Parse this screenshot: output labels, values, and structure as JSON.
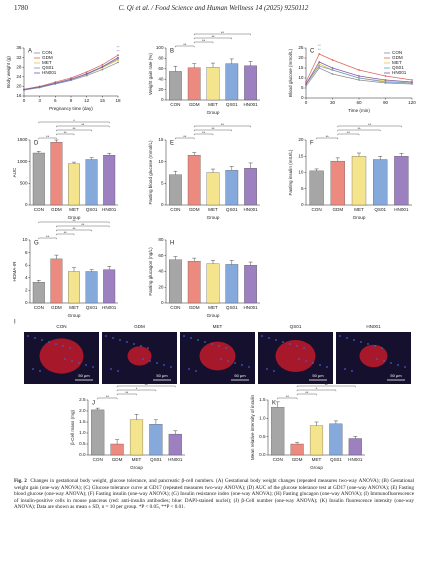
{
  "header": {
    "page": "1780",
    "journal": "C. Qi et al. / Food Science and Human Wellness 14 (2025) 9250112"
  },
  "chart_data": [
    {
      "type": "line",
      "panel": "A",
      "ylabel": "Body weight (g)",
      "xlabel": "Pregnancy time (day)",
      "x": [
        0,
        3,
        6,
        9,
        12,
        15,
        18
      ],
      "xlim": [
        0,
        18
      ],
      "xticks": [
        0,
        3,
        6,
        9,
        12,
        15,
        18
      ],
      "ylim": [
        16,
        36
      ],
      "yticks": [
        16,
        20,
        24,
        28,
        32,
        36
      ],
      "legend": "upper left",
      "annotations": [
        "**",
        "**"
      ],
      "series": [
        {
          "name": "CON",
          "color": "#8c8c8c",
          "values": [
            18.5,
            19.5,
            21,
            22.5,
            24.5,
            27,
            30
          ]
        },
        {
          "name": "GDM",
          "color": "#e0625a",
          "values": [
            18.8,
            20,
            21.8,
            23.5,
            26,
            29,
            33
          ]
        },
        {
          "name": "MET",
          "color": "#e3c840",
          "values": [
            18.6,
            19.8,
            21.3,
            23,
            25,
            27.8,
            31
          ]
        },
        {
          "name": "QS01",
          "color": "#6f97d0",
          "values": [
            18.5,
            19.7,
            21.2,
            22.8,
            25,
            28,
            31.5
          ]
        },
        {
          "name": "HN001",
          "color": "#7a5aa8",
          "values": [
            18.7,
            19.8,
            21.4,
            23,
            25.3,
            28.2,
            32
          ]
        }
      ]
    },
    {
      "type": "bar",
      "panel": "B",
      "ylabel": "Weight gain rate (%)",
      "xlabel": "Group",
      "categories": [
        "CON",
        "GDM",
        "MET",
        "QS01",
        "HN001"
      ],
      "colors": [
        "#a6a6a6",
        "#ec8a80",
        "#f5e48e",
        "#86a9dc",
        "#9c80c0"
      ],
      "values": [
        55,
        62,
        63,
        70,
        66
      ],
      "errors": [
        10,
        8,
        8,
        9,
        8
      ],
      "ylim": [
        0,
        100
      ],
      "yticks": [
        0,
        20,
        40,
        60,
        80,
        100
      ],
      "annotations": [
        "**",
        "**",
        "**",
        "**"
      ]
    },
    {
      "type": "line",
      "panel": "C",
      "ylabel": "Blood glucose (mmol/L)",
      "xlabel": "Time (min)",
      "x": [
        0,
        15,
        30,
        60,
        90,
        120
      ],
      "xlim": [
        0,
        120
      ],
      "xticks": [
        0,
        30,
        60,
        90,
        120
      ],
      "ylim": [
        0,
        25
      ],
      "yticks": [
        0,
        5,
        10,
        15,
        20,
        25
      ],
      "legend": "upper right",
      "annotations": [
        "**",
        "**"
      ],
      "series": [
        {
          "name": "CON",
          "color": "#8c8c8c",
          "values": [
            6,
            15,
            12,
            9,
            7.5,
            7
          ]
        },
        {
          "name": "GDM",
          "color": "#e0625a",
          "values": [
            8,
            22,
            19,
            14,
            11,
            9
          ]
        },
        {
          "name": "MET",
          "color": "#e3c840",
          "values": [
            7,
            17,
            14,
            10,
            8.5,
            7.5
          ]
        },
        {
          "name": "QS01",
          "color": "#6f97d0",
          "values": [
            7,
            16,
            14,
            10,
            8,
            7.5
          ]
        },
        {
          "name": "HN001",
          "color": "#7a5aa8",
          "values": [
            7,
            18,
            15,
            11,
            9,
            8
          ]
        }
      ]
    },
    {
      "type": "bar",
      "panel": "D",
      "ylabel": "AUC",
      "xlabel": "Group",
      "categories": [
        "CON",
        "GDM",
        "MET",
        "QS01",
        "HN001"
      ],
      "colors": [
        "#a6a6a6",
        "#ec8a80",
        "#f5e48e",
        "#86a9dc",
        "#9c80c0"
      ],
      "values": [
        1200,
        1450,
        950,
        1050,
        1150
      ],
      "errors": [
        40,
        50,
        40,
        40,
        45
      ],
      "ylim": [
        0,
        1500
      ],
      "yticks": [
        0,
        500,
        1000,
        1500
      ],
      "annotations": [
        "**",
        "**",
        "**",
        "**",
        "*"
      ]
    },
    {
      "type": "bar",
      "panel": "E",
      "ylabel": "Fasting blood glucose (mmol/L)",
      "xlabel": "Group",
      "categories": [
        "CON",
        "GDM",
        "MET",
        "QS01",
        "HN001"
      ],
      "colors": [
        "#a6a6a6",
        "#ec8a80",
        "#f5e48e",
        "#86a9dc",
        "#9c80c0"
      ],
      "values": [
        7,
        11.5,
        7.5,
        8,
        8.5
      ],
      "errors": [
        0.8,
        0.6,
        0.8,
        0.9,
        1.2
      ],
      "ylim": [
        0,
        15
      ],
      "yticks": [
        0,
        5,
        10,
        15
      ],
      "annotations": [
        "**",
        "**",
        "**",
        "**"
      ]
    },
    {
      "type": "bar",
      "panel": "F",
      "ylabel": "Fasting insulin (mIU/L)",
      "xlabel": "Group",
      "categories": [
        "CON",
        "GDM",
        "MET",
        "QS01",
        "HN001"
      ],
      "colors": [
        "#a6a6a6",
        "#ec8a80",
        "#f5e48e",
        "#86a9dc",
        "#9c80c0"
      ],
      "values": [
        10.5,
        13.5,
        15,
        14,
        15
      ],
      "errors": [
        0.6,
        1,
        1,
        1,
        0.9
      ],
      "ylim": [
        0,
        20
      ],
      "yticks": [
        0,
        5,
        10,
        15,
        20
      ],
      "annotations": [
        "**",
        "**",
        "**",
        "**"
      ]
    },
    {
      "type": "bar",
      "panel": "G",
      "ylabel": "HOMA-IR",
      "xlabel": "Group",
      "categories": [
        "CON",
        "GDM",
        "MET",
        "QS01",
        "HN001"
      ],
      "colors": [
        "#a6a6a6",
        "#ec8a80",
        "#f5e48e",
        "#86a9dc",
        "#9c80c0"
      ],
      "values": [
        3.3,
        7,
        5,
        5,
        5.3
      ],
      "errors": [
        0.3,
        0.6,
        0.6,
        0.3,
        0.5
      ],
      "ylim": [
        0,
        10
      ],
      "yticks": [
        0,
        2,
        4,
        6,
        8,
        10
      ],
      "annotations": [
        "**",
        "**",
        "**",
        "**",
        "**"
      ]
    },
    {
      "type": "bar",
      "panel": "H",
      "ylabel": "Fasting glucagon (ng/L)",
      "xlabel": "Group",
      "categories": [
        "CON",
        "GDM",
        "MET",
        "QS01",
        "HN001"
      ],
      "colors": [
        "#a6a6a6",
        "#ec8a80",
        "#f5e48e",
        "#86a9dc",
        "#9c80c0"
      ],
      "values": [
        55,
        53,
        50,
        49,
        48
      ],
      "errors": [
        4,
        4,
        4,
        5,
        4
      ],
      "ylim": [
        0,
        80
      ],
      "yticks": [
        0,
        20,
        40,
        60,
        80
      ],
      "annotations": []
    },
    {
      "type": "bar",
      "panel": "J",
      "ylabel": "β-Cell mass (mg)",
      "xlabel": "Group",
      "categories": [
        "CON",
        "GDM",
        "MET",
        "QS01",
        "HN001"
      ],
      "colors": [
        "#a6a6a6",
        "#ec8a80",
        "#f5e48e",
        "#86a9dc",
        "#9c80c0"
      ],
      "values": [
        2.05,
        0.5,
        1.6,
        1.4,
        0.95
      ],
      "errors": [
        0.08,
        0.2,
        0.25,
        0.2,
        0.15
      ],
      "ylim": [
        0,
        2.5
      ],
      "yticks": [
        {
          "value": 0,
          "label": "0.0"
        },
        0.5,
        {
          "value": 1,
          "label": "1.0"
        },
        1.5,
        {
          "value": 2,
          "label": "2.0"
        },
        2.5
      ],
      "annotations": [
        "**",
        "**",
        "*",
        "**"
      ]
    },
    {
      "type": "bar",
      "panel": "K",
      "ylabel": "Mean relative intensity of insulin",
      "xlabel": "Group",
      "categories": [
        "CON",
        "GDM",
        "MET",
        "QS01",
        "HN001"
      ],
      "colors": [
        "#a6a6a6",
        "#ec8a80",
        "#f5e48e",
        "#86a9dc",
        "#9c80c0"
      ],
      "values": [
        1.3,
        0.3,
        0.8,
        0.85,
        0.45
      ],
      "errors": [
        0.15,
        0.05,
        0.1,
        0.08,
        0.06
      ],
      "ylim": [
        0,
        1.5
      ],
      "yticks": [
        {
          "value": 0,
          "label": "0.0"
        },
        0.5,
        {
          "value": 1,
          "label": "1.0"
        },
        1.5
      ],
      "annotations": [
        "**",
        "**",
        "*",
        "**"
      ]
    }
  ],
  "image_panel": {
    "panel": "I",
    "labels": [
      "CON",
      "GDM",
      "MET",
      "QS01",
      "HN001"
    ],
    "scale_bar": "50 μm"
  },
  "caption": {
    "label": "Fig. 2",
    "text": "Changes in gestational body weight, glucose tolerance, and pancreatic β-cell numbers. (A) Gestational body weight changes (repeated measures two-way ANOVA); (B) Gestational weight gain (one-way ANOVA); (C) Glucose tolerance curve at GD17 (repeated measures two-way ANOVA); (D) AUC of the glucose tolerance test at GD17 (one-way ANOVA); (E) Fasting blood glucose (one-way ANOVA); (F) Fasting insulin (one-way ANOVA); (G) Insulin resistance index (one-way ANOVA); (H) Fasting glucagon (one-way ANOVA); (I) Immunofluorescence of insulin-positive cells in mouse pancreas (red: anti-insulin antibodies; blue: DAPI-stained nuclei); (J) β-Cell number (one-way ANOVA); (K) Insulin fluorescence intensity (one-way ANOVA); Data are shown as mean ± SD, n = 10 per group. *P < 0.05, **P < 0.01."
  }
}
